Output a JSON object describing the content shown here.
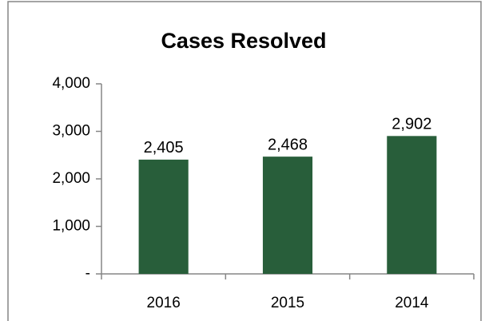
{
  "chart_data": {
    "type": "bar",
    "title": "Cases Resolved",
    "categories": [
      "2016",
      "2015",
      "2014"
    ],
    "values": [
      2405,
      2468,
      2902
    ],
    "value_labels": [
      "2,405",
      "2,468",
      "2,902"
    ],
    "color": "#285e3a",
    "ylim": [
      0,
      4000
    ],
    "yticks": [
      {
        "value": 0,
        "label": "-"
      },
      {
        "value": 1000,
        "label": "1,000"
      },
      {
        "value": 2000,
        "label": "2,000"
      },
      {
        "value": 3000,
        "label": "3,000"
      },
      {
        "value": 4000,
        "label": "4,000"
      }
    ],
    "grid": false
  }
}
